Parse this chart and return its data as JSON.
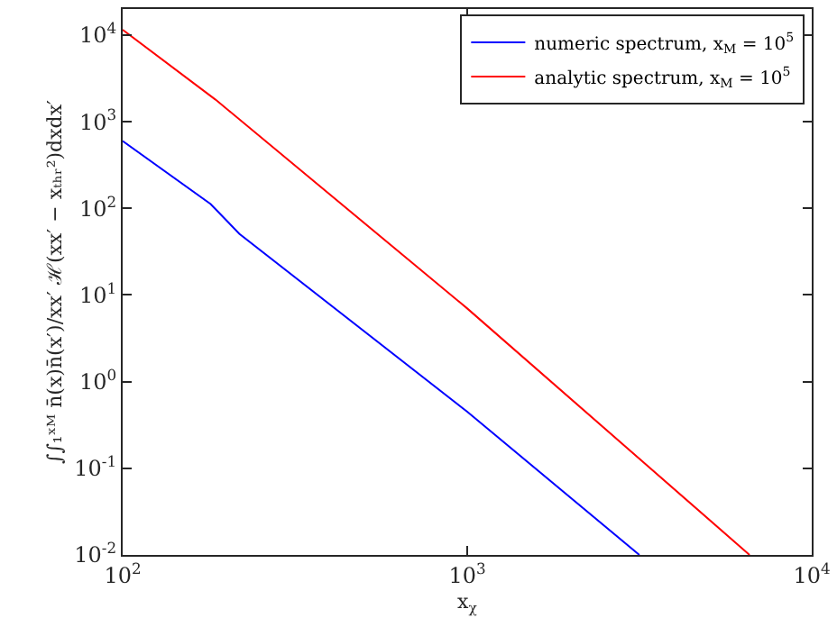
{
  "chart_data": {
    "type": "line",
    "xlabel": "x$_{χ}$",
    "ylabel": "∫∫₁ˣᴹ n̄(x)n̄(x′)/xx′ ℋ(xx′ − xₜₕᵣ²)dxdx′",
    "log": "xy",
    "legend": "top right",
    "line_style": "solid",
    "marker": "none",
    "xlim": [
      100,
      10000
    ],
    "ylim": [
      0.01,
      20000
    ],
    "xticks": [
      {
        "value": 100,
        "label": "10$^{2}$"
      },
      {
        "value": 1000,
        "label": "10$^{3}$"
      },
      {
        "value": 10000,
        "label": "10$^{4}$"
      }
    ],
    "yticks": [
      {
        "value": 0.01,
        "label": "10$^{-2}$"
      },
      {
        "value": 0.1,
        "label": "10$^{-1}$"
      },
      {
        "value": 1,
        "label": "10$^{0}$"
      },
      {
        "value": 10,
        "label": "10$^{1}$"
      },
      {
        "value": 100,
        "label": "10$^{2}$"
      },
      {
        "value": 1000,
        "label": "10$^{3}$"
      },
      {
        "value": 10000,
        "label": "10$^{4}$"
      }
    ],
    "series": [
      {
        "name": "numeric spectrum, x$_{M}$ = 10$^{5}$",
        "color": "#0000ff",
        "x": [
          100,
          180,
          218,
          1000,
          3160
        ],
        "values": [
          600,
          112,
          51,
          0.45,
          0.01
        ]
      },
      {
        "name": "analytic spectrum, x$_{M}$ = 10$^{5}$",
        "color": "#ff0000",
        "x": [
          100,
          186,
          1000,
          6600
        ],
        "values": [
          11500,
          1800,
          7,
          0.01
        ]
      }
    ]
  }
}
